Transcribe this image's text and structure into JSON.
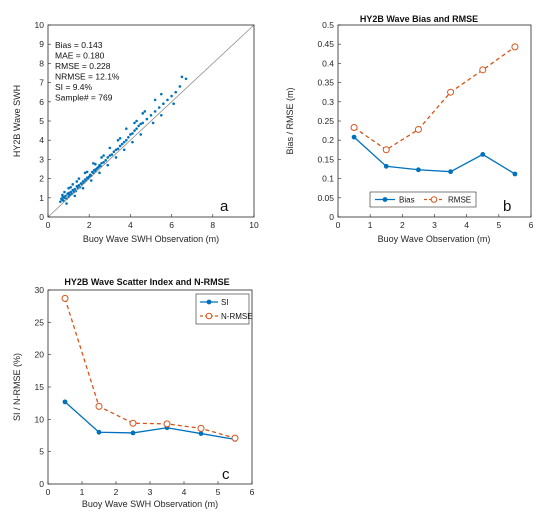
{
  "colors": {
    "blue": "#0072BD",
    "orange": "#D95319",
    "axis": "#262626",
    "diagonal": "#8c8c8c"
  },
  "chart_data": [
    {
      "id": "a",
      "type": "scatter",
      "panel_letter": "a",
      "title": "",
      "xlabel": "Buoy Wave SWH Observation (m)",
      "ylabel": "HY2B Wave SWH",
      "xlim": [
        0,
        10
      ],
      "ylim": [
        0,
        10
      ],
      "xticks": [
        0,
        2,
        4,
        6,
        8,
        10
      ],
      "yticks": [
        0,
        1,
        2,
        3,
        4,
        5,
        6,
        7,
        8,
        9,
        10
      ],
      "grid": false,
      "reference_line": "1:1 diagonal",
      "stats": [
        "Bias = 0.143",
        "MAE = 0.180",
        "RMSE = 0.228",
        "NRMSE = 12.1%",
        "SI = 9.4%",
        "Sample# = 769"
      ],
      "series": [
        {
          "points": [
            [
              0.6,
              0.8
            ],
            [
              0.65,
              0.95
            ],
            [
              0.7,
              0.9
            ],
            [
              0.72,
              1.05
            ],
            [
              0.75,
              0.85
            ],
            [
              0.8,
              1.0
            ],
            [
              0.85,
              1.1
            ],
            [
              0.9,
              0.95
            ],
            [
              0.95,
              1.2
            ],
            [
              1.0,
              1.05
            ],
            [
              1.0,
              1.25
            ],
            [
              1.05,
              1.15
            ],
            [
              1.1,
              1.3
            ],
            [
              1.15,
              1.2
            ],
            [
              1.2,
              1.4
            ],
            [
              1.25,
              1.3
            ],
            [
              1.3,
              1.45
            ],
            [
              1.35,
              1.35
            ],
            [
              1.4,
              1.6
            ],
            [
              1.45,
              1.5
            ],
            [
              1.5,
              1.65
            ],
            [
              1.55,
              1.55
            ],
            [
              1.6,
              1.75
            ],
            [
              1.65,
              1.7
            ],
            [
              1.7,
              1.85
            ],
            [
              1.75,
              1.8
            ],
            [
              1.8,
              1.95
            ],
            [
              1.85,
              1.9
            ],
            [
              1.9,
              2.05
            ],
            [
              1.95,
              2.0
            ],
            [
              2.0,
              2.1
            ],
            [
              2.05,
              2.2
            ],
            [
              2.1,
              2.15
            ],
            [
              2.15,
              2.35
            ],
            [
              2.2,
              2.3
            ],
            [
              2.25,
              2.45
            ],
            [
              2.3,
              2.4
            ],
            [
              2.35,
              2.5
            ],
            [
              2.4,
              2.55
            ],
            [
              2.45,
              2.6
            ],
            [
              2.5,
              2.7
            ],
            [
              2.55,
              2.65
            ],
            [
              2.6,
              2.8
            ],
            [
              2.7,
              2.85
            ],
            [
              2.8,
              2.95
            ],
            [
              2.9,
              3.1
            ],
            [
              3.0,
              3.2
            ],
            [
              3.1,
              3.25
            ],
            [
              3.2,
              3.4
            ],
            [
              3.3,
              3.5
            ],
            [
              3.4,
              3.55
            ],
            [
              3.5,
              3.7
            ],
            [
              3.6,
              3.8
            ],
            [
              3.7,
              3.9
            ],
            [
              3.8,
              4.0
            ],
            [
              3.9,
              4.15
            ],
            [
              4.0,
              4.3
            ],
            [
              4.1,
              4.35
            ],
            [
              4.2,
              4.5
            ],
            [
              4.3,
              4.6
            ],
            [
              4.4,
              4.75
            ],
            [
              4.5,
              4.85
            ],
            [
              4.6,
              4.9
            ],
            [
              4.8,
              5.1
            ],
            [
              5.0,
              5.3
            ],
            [
              5.2,
              5.5
            ],
            [
              5.4,
              5.7
            ],
            [
              5.6,
              5.9
            ],
            [
              5.8,
              6.1
            ],
            [
              6.0,
              6.3
            ],
            [
              6.2,
              6.5
            ],
            [
              6.4,
              6.8
            ],
            [
              6.5,
              7.3
            ],
            [
              6.7,
              7.2
            ],
            [
              1.0,
              1.5
            ],
            [
              1.2,
              1.7
            ],
            [
              1.5,
              2.0
            ],
            [
              1.8,
              2.3
            ],
            [
              2.2,
              2.8
            ],
            [
              2.6,
              3.1
            ],
            [
              3.0,
              3.6
            ],
            [
              3.4,
              4.0
            ],
            [
              3.8,
              4.6
            ],
            [
              4.2,
              4.9
            ],
            [
              4.6,
              5.4
            ],
            [
              0.8,
              1.3
            ],
            [
              0.9,
              0.7
            ],
            [
              1.3,
              1.1
            ],
            [
              1.7,
              1.5
            ],
            [
              2.1,
              1.9
            ],
            [
              2.5,
              2.3
            ],
            [
              2.9,
              2.7
            ],
            [
              3.3,
              3.1
            ],
            [
              3.7,
              3.5
            ],
            [
              4.1,
              3.9
            ],
            [
              4.5,
              4.3
            ],
            [
              5.1,
              4.9
            ],
            [
              5.5,
              5.3
            ],
            [
              6.1,
              5.9
            ],
            [
              0.7,
              1.15
            ],
            [
              1.1,
              1.55
            ],
            [
              1.4,
              1.85
            ],
            [
              1.9,
              2.35
            ],
            [
              2.3,
              2.75
            ],
            [
              2.7,
              3.2
            ],
            [
              3.5,
              4.1
            ],
            [
              4.3,
              5.0
            ],
            [
              4.7,
              5.5
            ],
            [
              5.2,
              6.1
            ],
            [
              5.5,
              6.4
            ]
          ]
        }
      ]
    },
    {
      "id": "b",
      "type": "line",
      "panel_letter": "b",
      "title": "HY2B Wave Bias and RMSE",
      "xlabel": "Buoy Wave Observation (m)",
      "ylabel": "Bias / RMSE (m)",
      "xlim": [
        0,
        6
      ],
      "ylim": [
        0,
        0.5
      ],
      "xticks": [
        0,
        1,
        2,
        3,
        4,
        5,
        6
      ],
      "yticks": [
        "0",
        "0.05",
        "0.1",
        "0.15",
        "0.2",
        "0.25",
        "0.3",
        "0.35",
        "0.4",
        "0.45",
        "0.5"
      ],
      "grid": false,
      "legend_position": "bottom-center",
      "x": [
        0.5,
        1.5,
        2.5,
        3.5,
        4.5,
        5.5
      ],
      "series": [
        {
          "name": "Bias",
          "values": [
            0.208,
            0.132,
            0.123,
            0.118,
            0.163,
            0.112
          ],
          "color": "#0072BD",
          "style": "solid",
          "marker": "dot"
        },
        {
          "name": "RMSE",
          "values": [
            0.233,
            0.175,
            0.228,
            0.325,
            0.383,
            0.443
          ],
          "color": "#D95319",
          "style": "dashed",
          "marker": "circle"
        }
      ]
    },
    {
      "id": "c",
      "type": "line",
      "panel_letter": "c",
      "title": "HY2B Wave Scatter Index and N-RMSE",
      "xlabel": "Buoy Wave SWH Observation (m)",
      "ylabel": "SI / N-RMSE (%)",
      "xlim": [
        0,
        6
      ],
      "ylim": [
        0,
        30
      ],
      "xticks": [
        0,
        1,
        2,
        3,
        4,
        5,
        6
      ],
      "yticks": [
        "0",
        "5",
        "10",
        "15",
        "20",
        "25",
        "30"
      ],
      "grid": false,
      "legend_position": "top-right",
      "x": [
        0.5,
        1.5,
        2.5,
        3.5,
        4.5,
        5.5
      ],
      "series": [
        {
          "name": "SI",
          "values": [
            12.7,
            8.0,
            7.9,
            8.7,
            7.8,
            6.9
          ],
          "color": "#0072BD",
          "style": "solid",
          "marker": "dot"
        },
        {
          "name": "N-RMSE",
          "values": [
            28.7,
            12.0,
            9.4,
            9.3,
            8.6,
            7.1
          ],
          "color": "#D95319",
          "style": "dashed",
          "marker": "circle"
        }
      ]
    }
  ]
}
